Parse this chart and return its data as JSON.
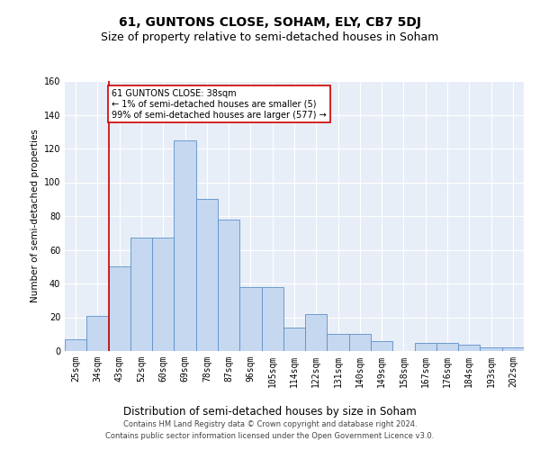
{
  "title": "61, GUNTONS CLOSE, SOHAM, ELY, CB7 5DJ",
  "subtitle": "Size of property relative to semi-detached houses in Soham",
  "xlabel": "Distribution of semi-detached houses by size in Soham",
  "ylabel": "Number of semi-detached properties",
  "categories": [
    "25sqm",
    "34sqm",
    "43sqm",
    "52sqm",
    "60sqm",
    "69sqm",
    "78sqm",
    "87sqm",
    "96sqm",
    "105sqm",
    "114sqm",
    "122sqm",
    "131sqm",
    "140sqm",
    "149sqm",
    "158sqm",
    "167sqm",
    "176sqm",
    "184sqm",
    "193sqm",
    "202sqm"
  ],
  "values": [
    7,
    21,
    50,
    67,
    67,
    125,
    90,
    78,
    38,
    38,
    14,
    22,
    10,
    10,
    6,
    0,
    5,
    5,
    4,
    2,
    2
  ],
  "bar_color": "#c5d8f0",
  "bar_edge_color": "#5b8fc9",
  "annotation_text": "61 GUNTONS CLOSE: 38sqm\n← 1% of semi-detached houses are smaller (5)\n99% of semi-detached houses are larger (577) →",
  "annotation_box_color": "white",
  "annotation_box_edge_color": "#cc0000",
  "vline_color": "#cc0000",
  "vline_x": 1.5,
  "ylim": [
    0,
    160
  ],
  "yticks": [
    0,
    20,
    40,
    60,
    80,
    100,
    120,
    140,
    160
  ],
  "background_color": "#e8eef7",
  "footer_line1": "Contains HM Land Registry data © Crown copyright and database right 2024.",
  "footer_line2": "Contains public sector information licensed under the Open Government Licence v3.0.",
  "title_fontsize": 10,
  "subtitle_fontsize": 9,
  "tick_fontsize": 7,
  "ylabel_fontsize": 7.5,
  "xlabel_fontsize": 8.5,
  "footer_fontsize": 6,
  "annot_fontsize": 7
}
